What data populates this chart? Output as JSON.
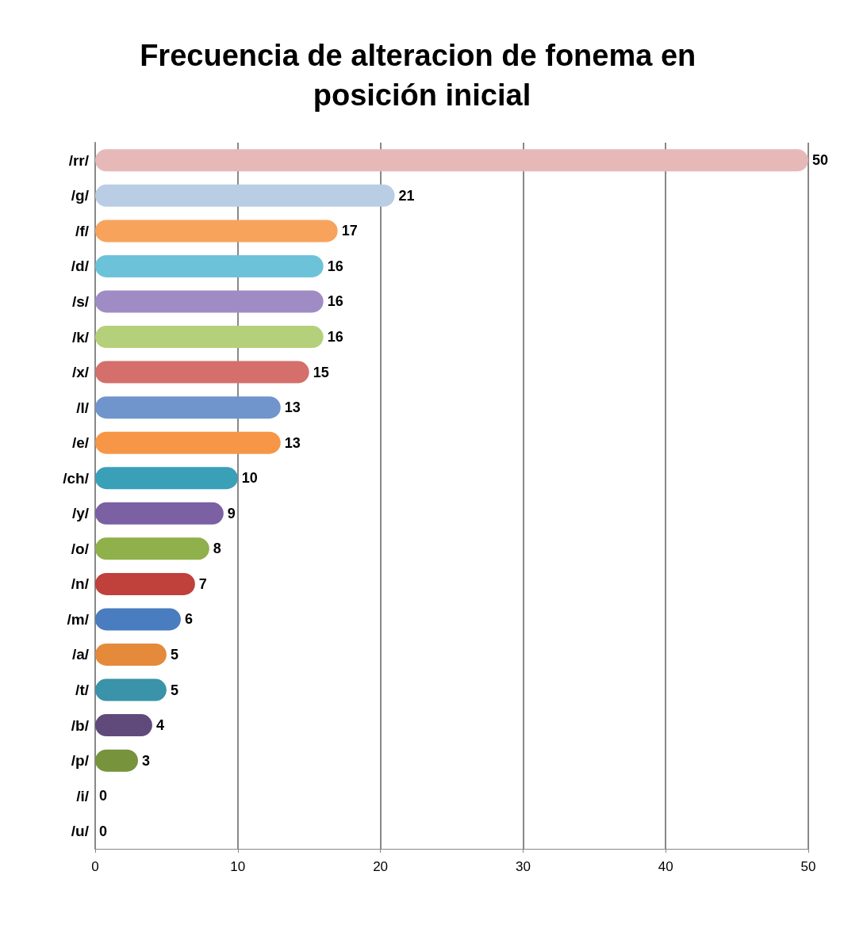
{
  "chart_data": {
    "type": "bar",
    "orientation": "horizontal",
    "title": "Frecuencia de alteracion de fonema en posición inicial",
    "categories": [
      "/rr/",
      "/g/",
      "/f/",
      "/d/",
      "/s/",
      "/k/",
      "/x/",
      "/l/",
      "/e/",
      "/ch/",
      "/y/",
      "/o/",
      "/n/",
      "/m/",
      "/a/",
      "/t/",
      "/b/",
      "/p/",
      "/i/",
      "/u/"
    ],
    "values": [
      50,
      21,
      17,
      16,
      16,
      16,
      15,
      13,
      13,
      10,
      9,
      8,
      7,
      6,
      5,
      5,
      4,
      3,
      0,
      0
    ],
    "colors": [
      "#e6b9b8",
      "#b9cde5",
      "#f7a35c",
      "#6cc3d9",
      "#a08cc4",
      "#b5d07a",
      "#d46f6c",
      "#6f95cc",
      "#f79646",
      "#3aa0b8",
      "#7b60a3",
      "#8fb04a",
      "#c0403c",
      "#4a7cc0",
      "#e58a3a",
      "#3a93a8",
      "#604a7b",
      "#77933c",
      "#953735",
      "#1f497d"
    ],
    "xlim": [
      0,
      50
    ],
    "xticks": [
      0,
      10,
      20,
      30,
      40,
      50
    ],
    "grid": "x",
    "data_labels": true
  }
}
